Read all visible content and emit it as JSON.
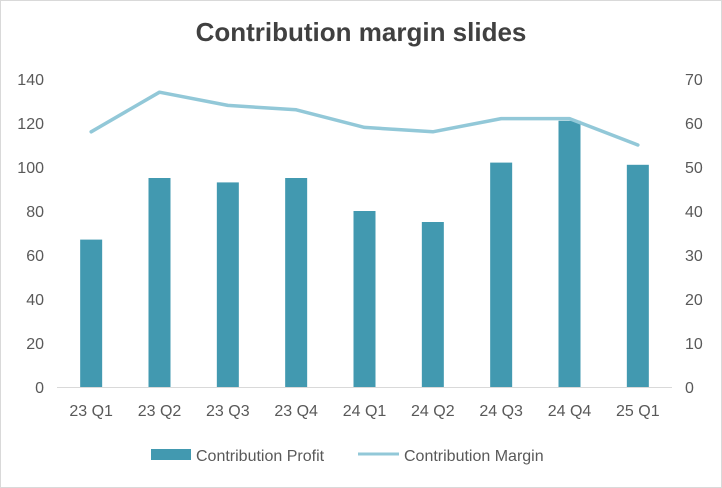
{
  "chart_data": {
    "type": "bar",
    "title": "Contribution margin slides",
    "categories": [
      "23 Q1",
      "23 Q2",
      "23 Q3",
      "23 Q4",
      "24 Q1",
      "24 Q2",
      "24 Q3",
      "24 Q4",
      "25 Q1"
    ],
    "series": [
      {
        "name": "Contribution Profit",
        "type": "bar",
        "axis": "left",
        "color": "#4299b0",
        "values": [
          67,
          95,
          93,
          95,
          80,
          75,
          102,
          121,
          101
        ]
      },
      {
        "name": "Contribution Margin",
        "type": "line",
        "axis": "right",
        "color": "#92c8d8",
        "values": [
          58,
          67,
          64,
          63,
          59,
          58,
          61,
          61,
          55
        ]
      }
    ],
    "y_left": {
      "min": 0,
      "max": 140,
      "ticks": [
        "0",
        "20",
        "40",
        "60",
        "80",
        "100",
        "120",
        "140"
      ]
    },
    "y_right": {
      "min": 0,
      "max": 70,
      "ticks": [
        "0",
        "10",
        "20",
        "30",
        "40",
        "50",
        "60",
        "70"
      ]
    },
    "grid": false,
    "legend": "bottom"
  }
}
